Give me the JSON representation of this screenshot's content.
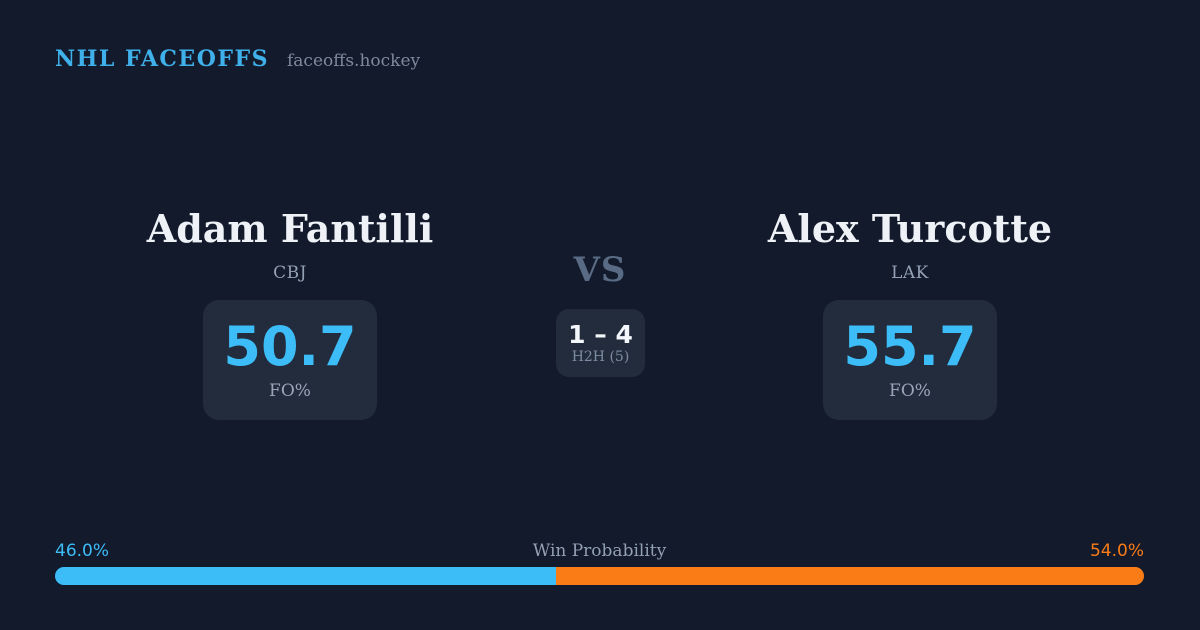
{
  "header": {
    "brand": "NHL FACEOFFS",
    "site": "faceoffs.hockey"
  },
  "matchup": {
    "vs_label": "VS",
    "h2h": {
      "score": "1 – 4",
      "label": "H2H (5)"
    },
    "players": [
      {
        "name": "Adam Fantilli",
        "team": "CBJ",
        "stat_value": "50.7",
        "stat_label": "FO%"
      },
      {
        "name": "Alex Turcotte",
        "team": "LAK",
        "stat_value": "55.7",
        "stat_label": "FO%"
      }
    ]
  },
  "win_probability": {
    "title": "Win Probability",
    "left_pct_label": "46.0%",
    "right_pct_label": "54.0%",
    "left_value": 46.0,
    "right_value": 54.0,
    "left_color": "#3cbdf8",
    "right_color": "#f97c16"
  },
  "colors": {
    "background": "#121a2b",
    "card_background": "#222c3d",
    "accent_blue": "#3cbdf8",
    "accent_orange": "#f97c16",
    "brand_blue": "#3fb0ea",
    "muted_text": "#94a1b5"
  }
}
